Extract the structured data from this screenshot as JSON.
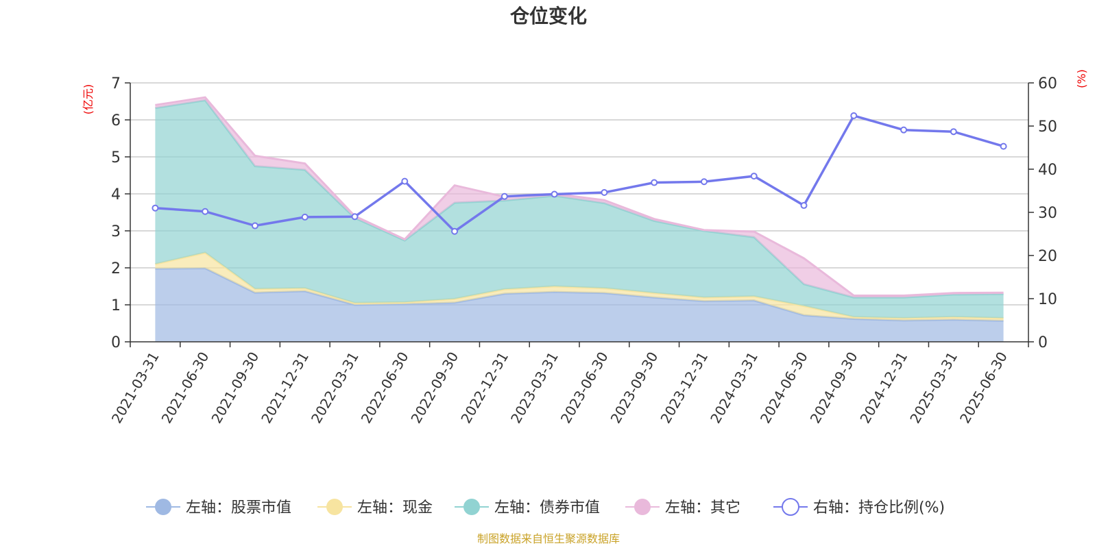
{
  "chart_data": {
    "type": "area",
    "title": "仓位变化",
    "left_unit": "(亿元)",
    "right_unit": "(%)",
    "ylim_left": [
      0,
      7
    ],
    "ylim_right": [
      0,
      60
    ],
    "yticks_left": [
      "0",
      "1",
      "2",
      "3",
      "4",
      "5",
      "6",
      "7"
    ],
    "yticks_right": [
      "0",
      "10",
      "20",
      "30",
      "40",
      "50",
      "60"
    ],
    "grid": true,
    "legend_position": "bottom",
    "categories": [
      "2021-03-31",
      "2021-06-30",
      "2021-09-30",
      "2021-12-31",
      "2022-03-31",
      "2022-06-30",
      "2022-09-30",
      "2022-12-31",
      "2023-03-31",
      "2023-06-30",
      "2023-09-30",
      "2023-12-31",
      "2024-03-31",
      "2024-06-30",
      "2024-09-30",
      "2024-12-31",
      "2025-03-31",
      "2025-06-30"
    ],
    "series": [
      {
        "name": "左轴：股票市值",
        "type": "area",
        "axis": "left",
        "color": "#9fb9e3",
        "values": [
          1.98,
          1.99,
          1.33,
          1.37,
          1.0,
          1.02,
          1.06,
          1.3,
          1.35,
          1.32,
          1.2,
          1.1,
          1.12,
          0.72,
          0.62,
          0.58,
          0.6,
          0.57
        ]
      },
      {
        "name": "左轴：现金",
        "type": "area",
        "axis": "left",
        "color": "#f7e4a0",
        "values": [
          0.12,
          0.42,
          0.1,
          0.08,
          0.05,
          0.05,
          0.1,
          0.12,
          0.15,
          0.13,
          0.12,
          0.1,
          0.11,
          0.25,
          0.05,
          0.06,
          0.07,
          0.07
        ]
      },
      {
        "name": "左轴：债券市值",
        "type": "area",
        "axis": "left",
        "color": "#91d3d2",
        "values": [
          4.22,
          4.12,
          3.32,
          3.2,
          2.3,
          1.67,
          2.6,
          2.4,
          2.45,
          2.3,
          1.95,
          1.8,
          1.6,
          0.59,
          0.53,
          0.56,
          0.61,
          0.65
        ]
      },
      {
        "name": "左轴：其它",
        "type": "area",
        "axis": "left",
        "color": "#e9b9db",
        "values": [
          0.08,
          0.08,
          0.28,
          0.17,
          0.05,
          0.03,
          0.47,
          0.1,
          0.05,
          0.08,
          0.05,
          0.02,
          0.15,
          0.7,
          0.05,
          0.05,
          0.04,
          0.04
        ]
      },
      {
        "name": "右轴：持仓比例(%)",
        "type": "line",
        "axis": "right",
        "color": "#7378ec",
        "values": [
          31.0,
          30.2,
          26.9,
          28.9,
          29.0,
          37.2,
          25.6,
          33.7,
          34.2,
          34.6,
          36.9,
          37.1,
          38.4,
          31.6,
          52.4,
          49.1,
          48.7,
          45.3
        ]
      }
    ],
    "source": "制图数据来自恒生聚源数据库"
  }
}
